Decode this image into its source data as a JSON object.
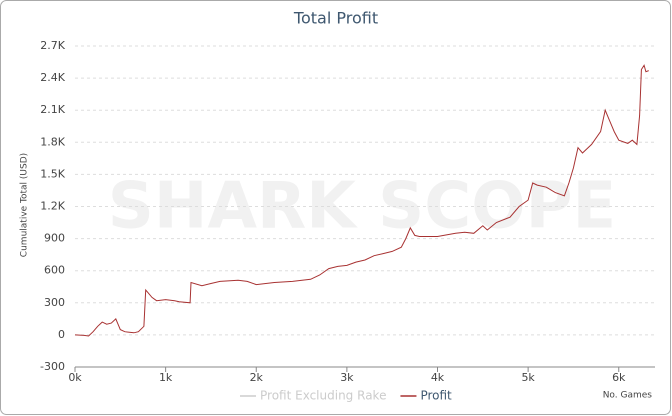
{
  "chart_data": {
    "type": "line",
    "title": "Total Profit",
    "watermark": "SHARK SCOPE",
    "y_label": "Cumulative Total (USD)",
    "x_label": "No. Games",
    "xlim": [
      0,
      6400
    ],
    "ylim": [
      -300,
      2700
    ],
    "xticks": [
      {
        "value": 0,
        "label": "0k"
      },
      {
        "value": 1000,
        "label": "1k"
      },
      {
        "value": 2000,
        "label": "2k"
      },
      {
        "value": 3000,
        "label": "3k"
      },
      {
        "value": 4000,
        "label": "4k"
      },
      {
        "value": 5000,
        "label": "5k"
      },
      {
        "value": 6000,
        "label": "6k"
      }
    ],
    "yticks": [
      -300,
      0,
      300,
      600,
      900,
      {
        "value": 1200,
        "label": "1.2K"
      },
      {
        "value": 1500,
        "label": "1.5K"
      },
      {
        "value": 1800,
        "label": "1.8K"
      },
      {
        "value": 2100,
        "label": "2.1K"
      },
      {
        "value": 2400,
        "label": "2.4K"
      },
      {
        "value": 2700,
        "label": "2.7K"
      }
    ],
    "grid": true,
    "x": [
      0,
      100,
      150,
      200,
      250,
      300,
      350,
      400,
      450,
      480,
      500,
      550,
      650,
      700,
      760,
      780,
      800,
      850,
      900,
      1000,
      1100,
      1150,
      1270,
      1280,
      1400,
      1500,
      1600,
      1800,
      1900,
      2000,
      2200,
      2400,
      2600,
      2700,
      2800,
      2900,
      3000,
      3100,
      3200,
      3300,
      3400,
      3500,
      3600,
      3650,
      3700,
      3750,
      3800,
      4000,
      4200,
      4300,
      4400,
      4500,
      4550,
      4650,
      4800,
      4900,
      5000,
      5050,
      5100,
      5200,
      5300,
      5400,
      5450,
      5500,
      5550,
      5600,
      5700,
      5800,
      5850,
      5900,
      5950,
      6000,
      6100,
      6150,
      6200,
      6230,
      6250,
      6280,
      6300,
      6330
    ],
    "series": [
      {
        "name": "Profit Excluding Rake",
        "color": "#cccccc",
        "visible": false
      },
      {
        "name": "Profit",
        "color": "#a83232",
        "values": [
          0,
          -5,
          -10,
          30,
          80,
          120,
          100,
          110,
          150,
          90,
          50,
          30,
          20,
          30,
          80,
          420,
          400,
          350,
          320,
          330,
          320,
          310,
          300,
          490,
          460,
          480,
          500,
          510,
          500,
          470,
          490,
          500,
          520,
          560,
          620,
          640,
          650,
          680,
          700,
          740,
          760,
          780,
          820,
          900,
          1000,
          930,
          920,
          920,
          950,
          960,
          950,
          1020,
          980,
          1050,
          1100,
          1200,
          1260,
          1420,
          1400,
          1380,
          1330,
          1300,
          1420,
          1560,
          1750,
          1700,
          1780,
          1900,
          2100,
          2000,
          1900,
          1820,
          1790,
          1820,
          1780,
          2050,
          2480,
          2520,
          2460,
          2470
        ]
      }
    ]
  }
}
